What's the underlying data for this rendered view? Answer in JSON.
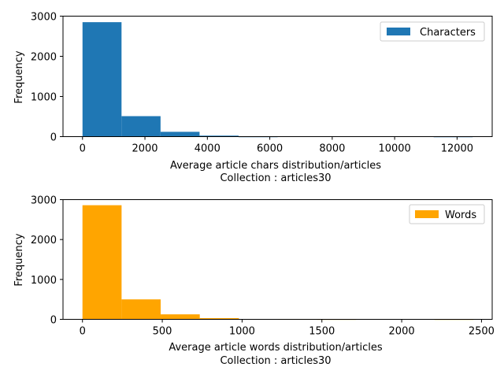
{
  "chart_data": [
    {
      "type": "bar",
      "subtype": "histogram",
      "legend": [
        "Characters"
      ],
      "legend_position": "top-right",
      "color": "#1f77b4",
      "xlabel": "Average article chars distribution/articles",
      "subtitle": "Collection : articles30",
      "ylabel": "Frequency",
      "xlim": [
        -625,
        13125
      ],
      "ylim": [
        0,
        3000
      ],
      "xticks": [
        0,
        2000,
        4000,
        6000,
        8000,
        10000,
        12000
      ],
      "yticks": [
        0,
        1000,
        2000,
        3000
      ],
      "bins": [
        {
          "start": 0,
          "end": 1250,
          "value": 2850
        },
        {
          "start": 1250,
          "end": 2500,
          "value": 510
        },
        {
          "start": 2500,
          "end": 3750,
          "value": 120
        },
        {
          "start": 3750,
          "end": 5000,
          "value": 25
        },
        {
          "start": 5000,
          "end": 6250,
          "value": 2
        },
        {
          "start": 6250,
          "end": 7500,
          "value": 0
        },
        {
          "start": 7500,
          "end": 8750,
          "value": 0
        },
        {
          "start": 8750,
          "end": 10000,
          "value": 0
        },
        {
          "start": 10000,
          "end": 11250,
          "value": 0
        },
        {
          "start": 11250,
          "end": 12500,
          "value": 1
        }
      ]
    },
    {
      "type": "bar",
      "subtype": "histogram",
      "legend": [
        "Words"
      ],
      "legend_position": "top-right",
      "color": "#ffa500",
      "xlabel": "Average article words distribution/articles",
      "subtitle": "Collection : articles30",
      "ylabel": "Frequency",
      "xlim": [
        -122,
        2567
      ],
      "ylim": [
        0,
        3000
      ],
      "xticks": [
        0,
        500,
        1000,
        1500,
        2000,
        2500
      ],
      "yticks": [
        0,
        1000,
        2000,
        3000
      ],
      "bins": [
        {
          "start": 0,
          "end": 245,
          "value": 2860
        },
        {
          "start": 245,
          "end": 490,
          "value": 500
        },
        {
          "start": 490,
          "end": 735,
          "value": 125
        },
        {
          "start": 735,
          "end": 980,
          "value": 30
        },
        {
          "start": 980,
          "end": 1225,
          "value": 8
        },
        {
          "start": 1225,
          "end": 1470,
          "value": 5
        },
        {
          "start": 1470,
          "end": 1715,
          "value": 3
        },
        {
          "start": 1715,
          "end": 1960,
          "value": 0
        },
        {
          "start": 1960,
          "end": 2205,
          "value": 0
        },
        {
          "start": 2205,
          "end": 2450,
          "value": 2
        }
      ]
    }
  ]
}
